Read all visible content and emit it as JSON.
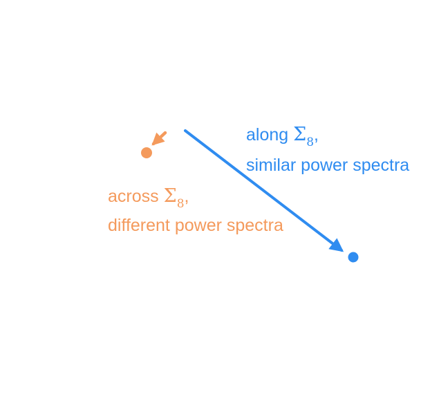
{
  "colors": {
    "blue": "#2f8cf0",
    "orange": "#f49a5c",
    "background": "#ffffff"
  },
  "along": {
    "line1_prefix": "along",
    "symbol": "Σ",
    "subscript": "8",
    "suffix": ",",
    "line2": "similar power spectra"
  },
  "across": {
    "line1_prefix": "across",
    "symbol": "Σ",
    "subscript": "8",
    "suffix": ",",
    "line2": "different power spectra"
  }
}
